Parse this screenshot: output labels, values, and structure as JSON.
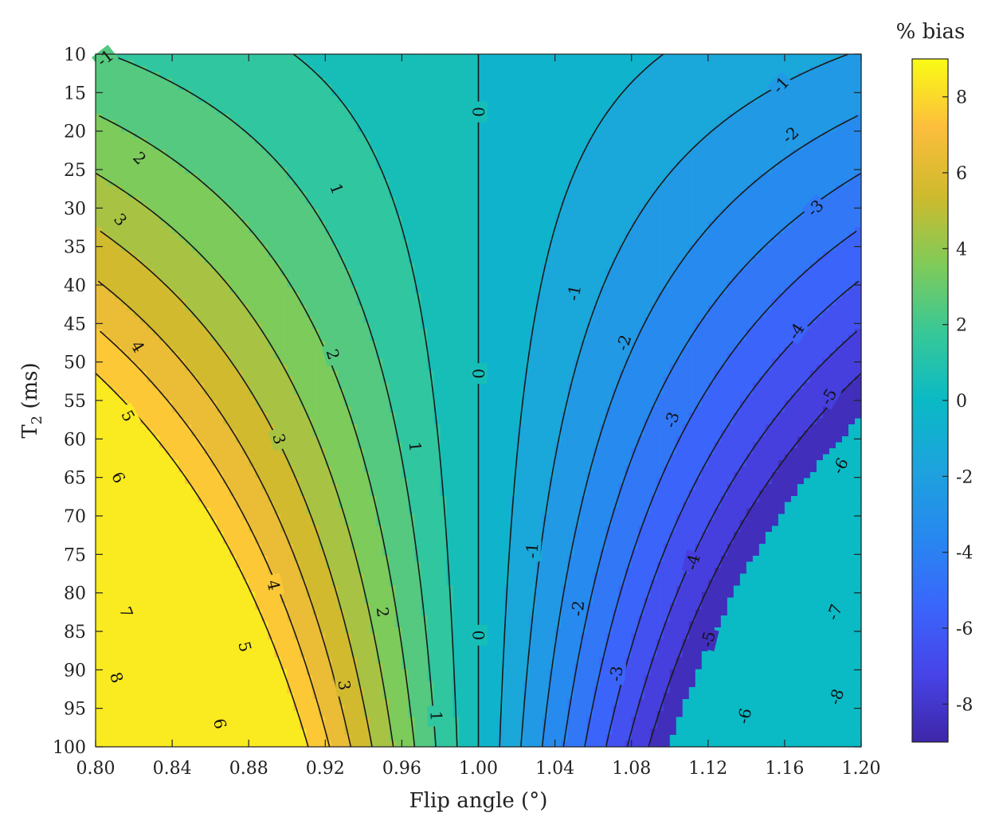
{
  "chart_data": {
    "type": "contour",
    "xlabel": "Flip angle (°)",
    "ylabel_main": "T",
    "ylabel_sub": "2",
    "ylabel_unit": " (ms)",
    "colorbar_title": "% bias",
    "xlim": [
      0.8,
      1.2
    ],
    "ylim": [
      10,
      100
    ],
    "y_reversed": true,
    "x_ticks": [
      "0.80",
      "0.84",
      "0.88",
      "0.92",
      "0.96",
      "1.00",
      "1.04",
      "1.08",
      "1.12",
      "1.16",
      "1.20"
    ],
    "y_ticks": [
      "10",
      "15",
      "20",
      "25",
      "30",
      "35",
      "40",
      "45",
      "50",
      "55",
      "60",
      "65",
      "70",
      "75",
      "80",
      "85",
      "90",
      "95",
      "100"
    ],
    "colorbar_ticks": [
      "8",
      "6",
      "4",
      "2",
      "0",
      "-2",
      "-4",
      "-6",
      "-8"
    ],
    "colorbar_range": [
      -9,
      9
    ],
    "colormap": "parula",
    "contour_levels": [
      -8,
      -7,
      -6,
      -5,
      -4,
      -3,
      -2,
      -1,
      0,
      1,
      2,
      3,
      4,
      5,
      6,
      7,
      8
    ],
    "contour_labels": [
      {
        "text": "-1",
        "x": 0.805,
        "y": 10.5
      },
      {
        "text": "1",
        "x": 0.926,
        "y": 27.5
      },
      {
        "text": "1",
        "x": 0.967,
        "y": 61
      },
      {
        "text": "1",
        "x": 0.978,
        "y": 96
      },
      {
        "text": "2",
        "x": 0.823,
        "y": 23.5
      },
      {
        "text": "2",
        "x": 0.924,
        "y": 49
      },
      {
        "text": "2",
        "x": 0.95,
        "y": 82.5
      },
      {
        "text": "3",
        "x": 0.813,
        "y": 31.5
      },
      {
        "text": "3",
        "x": 0.896,
        "y": 60
      },
      {
        "text": "3",
        "x": 0.93,
        "y": 92
      },
      {
        "text": "4",
        "x": 0.822,
        "y": 48
      },
      {
        "text": "4",
        "x": 0.893,
        "y": 79
      },
      {
        "text": "5",
        "x": 0.817,
        "y": 57
      },
      {
        "text": "5",
        "x": 0.878,
        "y": 87
      },
      {
        "text": "6",
        "x": 0.812,
        "y": 65
      },
      {
        "text": "6",
        "x": 0.865,
        "y": 97
      },
      {
        "text": "7",
        "x": 0.816,
        "y": 82.5
      },
      {
        "text": "8",
        "x": 0.811,
        "y": 91
      },
      {
        "text": "0",
        "x": 1.0,
        "y": 17.5
      },
      {
        "text": "0",
        "x": 1.0,
        "y": 51.5
      },
      {
        "text": "0",
        "x": 1.0,
        "y": 85.5
      },
      {
        "text": "-1",
        "x": 1.158,
        "y": 14
      },
      {
        "text": "-1",
        "x": 1.05,
        "y": 41
      },
      {
        "text": "-1",
        "x": 1.028,
        "y": 74.5
      },
      {
        "text": "-2",
        "x": 1.163,
        "y": 20.5
      },
      {
        "text": "-2",
        "x": 1.076,
        "y": 47.5
      },
      {
        "text": "-2",
        "x": 1.052,
        "y": 82
      },
      {
        "text": "-3",
        "x": 1.176,
        "y": 30
      },
      {
        "text": "-3",
        "x": 1.101,
        "y": 57.5
      },
      {
        "text": "-3",
        "x": 1.072,
        "y": 90.5
      },
      {
        "text": "-4",
        "x": 1.166,
        "y": 46
      },
      {
        "text": "-4",
        "x": 1.112,
        "y": 76
      },
      {
        "text": "-5",
        "x": 1.183,
        "y": 54.5
      },
      {
        "text": "-5",
        "x": 1.12,
        "y": 86
      },
      {
        "text": "-6",
        "x": 1.189,
        "y": 63.5
      },
      {
        "text": "-6",
        "x": 1.139,
        "y": 96
      },
      {
        "text": "-7",
        "x": 1.186,
        "y": 82.5
      },
      {
        "text": "-8",
        "x": 1.187,
        "y": 93.5
      }
    ]
  }
}
